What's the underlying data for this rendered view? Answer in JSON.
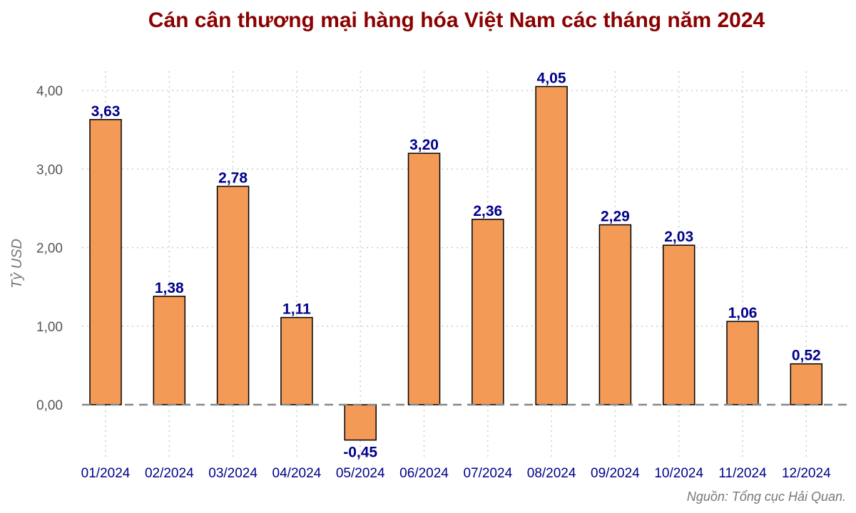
{
  "chart_data": {
    "type": "bar",
    "title": "Cán cân thương mại hàng hóa Việt Nam các tháng năm 2024",
    "ylabel": "Tỷ USD",
    "xlabel": "",
    "categories": [
      "01/2024",
      "02/2024",
      "03/2024",
      "04/2024",
      "05/2024",
      "06/2024",
      "07/2024",
      "08/2024",
      "09/2024",
      "10/2024",
      "11/2024",
      "12/2024"
    ],
    "values": [
      3.63,
      1.38,
      2.78,
      1.11,
      -0.45,
      3.2,
      2.36,
      4.05,
      2.29,
      2.03,
      1.06,
      0.52
    ],
    "value_labels": [
      "3,63",
      "1,38",
      "2,78",
      "1,11",
      "-0,45",
      "3,20",
      "2,36",
      "4,05",
      "2,29",
      "2,03",
      "1,06",
      "0,52"
    ],
    "yticks": [
      0,
      1,
      2,
      3,
      4
    ],
    "ytick_labels": [
      "0,00",
      "1,00",
      "2,00",
      "3,00",
      "4,00"
    ],
    "ylim": [
      -0.7,
      4.2
    ],
    "grid": true,
    "zero_line": "dashed",
    "bar_color": "#f39a56",
    "title_color": "#8b0000",
    "label_color": "#00008b",
    "source": "Nguồn: Tổng cục Hải Quan."
  }
}
